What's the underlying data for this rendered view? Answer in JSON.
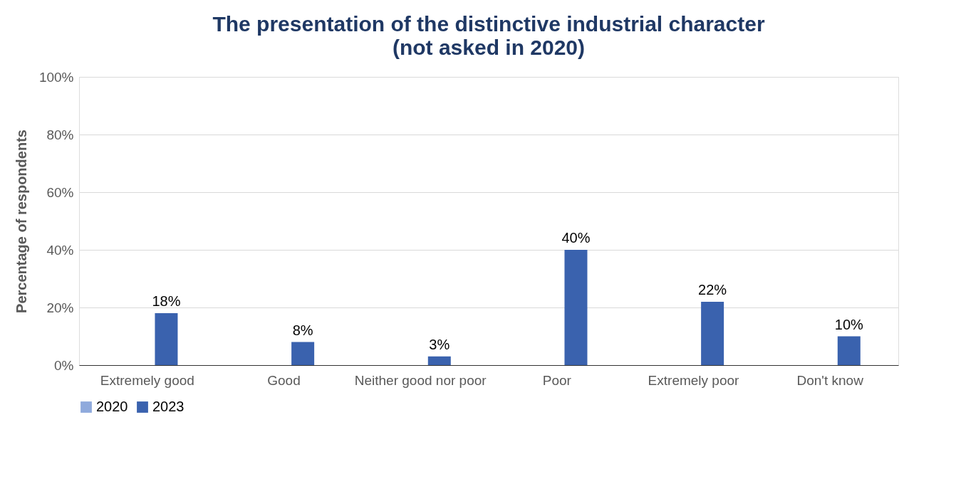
{
  "chart_data": {
    "type": "bar",
    "title": "The presentation of the distinctive industrial character",
    "subtitle": "(not asked in 2020)",
    "ylabel": "Percentage of respondents",
    "categories": [
      "Extremely good",
      "Good",
      "Neither good nor poor",
      "Poor",
      "Extremely poor",
      "Don't know"
    ],
    "series": [
      {
        "name": "2020",
        "color": "#8faadc",
        "values": [
          null,
          null,
          null,
          null,
          null,
          null
        ]
      },
      {
        "name": "2023",
        "color": "#3a62ae",
        "values": [
          18,
          8,
          3,
          40,
          22,
          10
        ],
        "value_labels": [
          "18%",
          "8%",
          "3%",
          "40%",
          "22%",
          "10%"
        ]
      }
    ],
    "ylim": [
      0,
      100
    ],
    "yticks": [
      {
        "value": 0,
        "label": "0%"
      },
      {
        "value": 20,
        "label": "20%"
      },
      {
        "value": 40,
        "label": "40%"
      },
      {
        "value": 60,
        "label": "60%"
      },
      {
        "value": 80,
        "label": "80%"
      },
      {
        "value": 100,
        "label": "100%"
      }
    ],
    "grid": "y",
    "legend": "bottom"
  }
}
